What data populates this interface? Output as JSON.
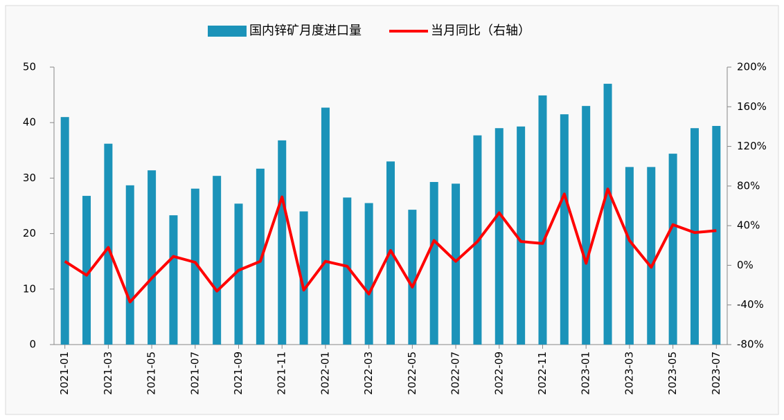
{
  "chart_data": {
    "type": "bar",
    "categories": [
      "2021-01",
      null,
      "2021-03",
      null,
      "2021-05",
      null,
      "2021-07",
      null,
      "2021-09",
      null,
      "2021-11",
      null,
      "2022-01",
      null,
      "2022-03",
      null,
      "2022-05",
      null,
      "2022-07",
      null,
      "2022-09",
      null,
      "2022-11",
      null,
      "2023-01",
      null,
      "2023-03",
      null,
      "2023-05",
      null,
      "2023-07"
    ],
    "series": [
      {
        "name": "国内锌矿月度进口量",
        "type": "bar",
        "color": "#1b93b9",
        "values": [
          41.0,
          26.8,
          36.2,
          28.7,
          31.4,
          23.3,
          28.1,
          30.4,
          25.4,
          31.7,
          36.8,
          24.0,
          42.7,
          26.5,
          25.5,
          33.0,
          24.3,
          29.3,
          29.0,
          37.7,
          39.0,
          39.3,
          44.9,
          41.5,
          43.0,
          47.0,
          32.0,
          32.0,
          34.4,
          39.0,
          39.4
        ]
      },
      {
        "name": "当月同比（右轴）",
        "type": "line",
        "axis": "y2",
        "color": "#ff0000",
        "values": [
          4,
          -10,
          18,
          -37,
          -13,
          9,
          3,
          -26,
          -5,
          4,
          69,
          -25,
          4,
          -1,
          -29,
          15,
          -22,
          25,
          4,
          24,
          53,
          24,
          22,
          72,
          2,
          77,
          25,
          -2,
          41,
          33,
          35
        ]
      }
    ],
    "ylim": [
      0,
      50
    ],
    "yticks": [
      0,
      10,
      20,
      30,
      40,
      50
    ],
    "y2lim": [
      -80,
      200
    ],
    "y2ticks": [
      {
        "value": -80,
        "label": "-80%"
      },
      {
        "value": -40,
        "label": "-40%"
      },
      {
        "value": 0,
        "label": "0%"
      },
      {
        "value": 40,
        "label": "40%"
      },
      {
        "value": 80,
        "label": "80%"
      },
      {
        "value": 120,
        "label": "120%"
      },
      {
        "value": 160,
        "label": "160%"
      },
      {
        "value": 200,
        "label": "200%"
      }
    ],
    "legend": "top",
    "grid": false
  }
}
